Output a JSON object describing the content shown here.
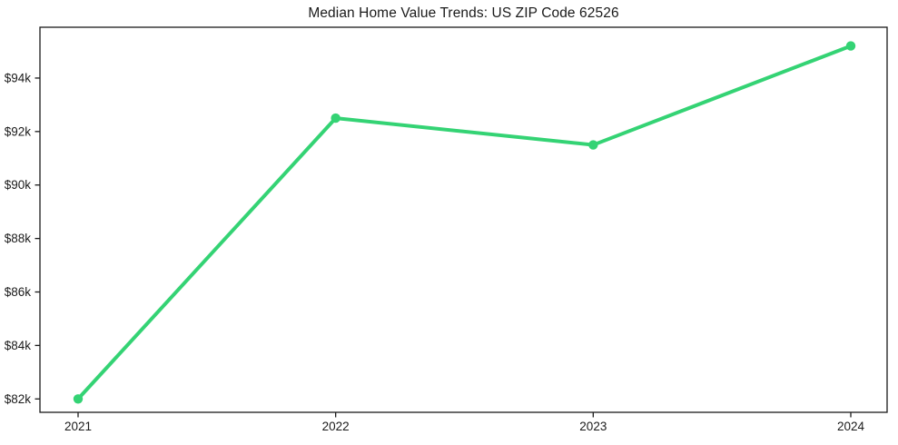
{
  "figure": {
    "background_color": "#ffffff",
    "axis_color": "#1a1a1a"
  },
  "chart_data": {
    "type": "line",
    "title": "Median Home Value Trends: US ZIP Code 62526",
    "x_categories": [
      "2021",
      "2022",
      "2023",
      "2024"
    ],
    "values_usd_thousands": [
      82.0,
      92.5,
      91.5,
      95.2
    ],
    "y_ticks": [
      82,
      84,
      86,
      88,
      90,
      92,
      94
    ],
    "y_tick_labels": [
      "$82k",
      "$84k",
      "$86k",
      "$88k",
      "$90k",
      "$92k",
      "$94k"
    ],
    "ylim": [
      81.5,
      95.9
    ],
    "xlabel": "",
    "ylabel": "",
    "grid": false,
    "legend": "none",
    "line_color": "#34d374",
    "marker": "circle",
    "marker_color": "#34d374",
    "tick_label_color": "#1a1a1a",
    "title_color": "#1a1a1a"
  }
}
